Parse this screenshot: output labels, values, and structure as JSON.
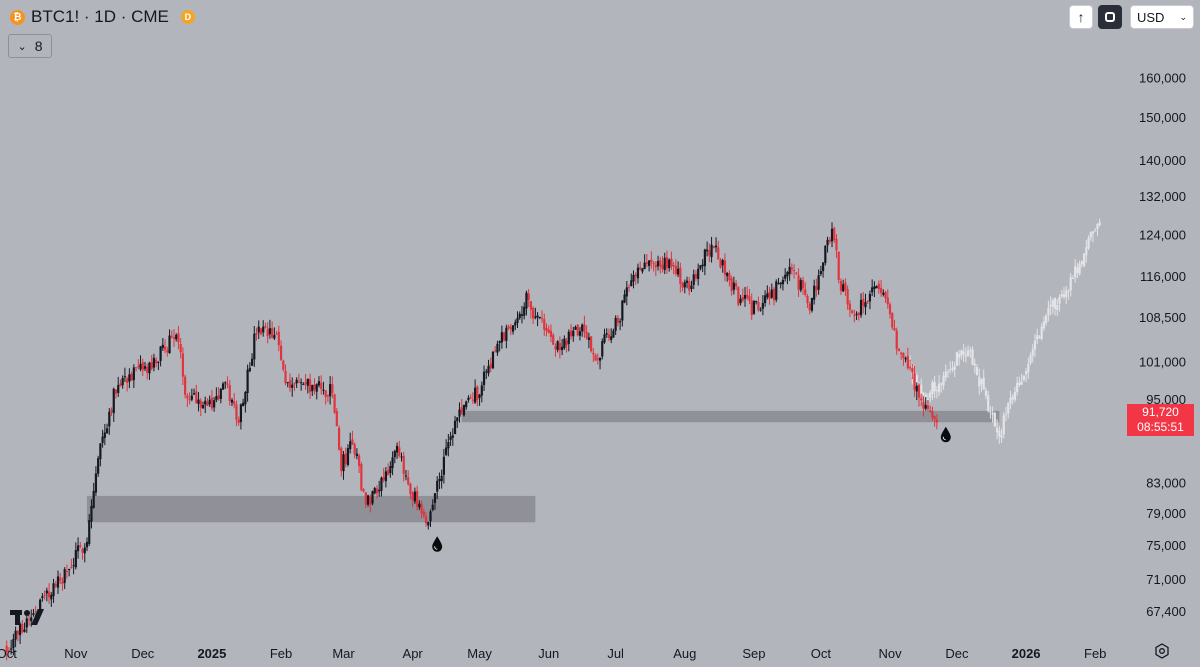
{
  "header": {
    "symbol": "BTC1! · 1D · CME",
    "symbol_icon": "bitcoin-icon",
    "delayed_badge": "D",
    "indicators_count": "8",
    "currency": "USD"
  },
  "price_tag": {
    "price": "91,720",
    "countdown": "08:55:51",
    "color": "#f23645"
  },
  "colors": {
    "background": "#b3b5bd",
    "up": "#141821",
    "down": "#e0353d",
    "projection": "#e3e4e8",
    "zone": "#8f9098"
  },
  "chart_data": {
    "type": "candlestick",
    "y_axis": {
      "scale": "log",
      "range": [
        64500,
        170000
      ],
      "ticks": [
        160000,
        150000,
        140000,
        132000,
        124000,
        116000,
        108500,
        101000,
        95000,
        83000,
        79000,
        75000,
        71000,
        67400
      ],
      "tick_labels": [
        "160,000",
        "150,000",
        "140,000",
        "132,000",
        "124,000",
        "116,000",
        "108,500",
        "101,000",
        "95,000",
        "83,000",
        "79,000",
        "75,000",
        "71,000",
        "67,400"
      ]
    },
    "x_axis": {
      "range": [
        "2024-09-28",
        "2026-02-13"
      ],
      "ticks": [
        {
          "label": "Oct",
          "date": "2024-10-01",
          "bold": false
        },
        {
          "label": "Nov",
          "date": "2024-11-01",
          "bold": false
        },
        {
          "label": "Dec",
          "date": "2024-12-01",
          "bold": false
        },
        {
          "label": "2025",
          "date": "2025-01-01",
          "bold": true
        },
        {
          "label": "Feb",
          "date": "2025-02-01",
          "bold": false
        },
        {
          "label": "Mar",
          "date": "2025-03-01",
          "bold": false
        },
        {
          "label": "Apr",
          "date": "2025-04-01",
          "bold": false
        },
        {
          "label": "May",
          "date": "2025-05-01",
          "bold": false
        },
        {
          "label": "Jun",
          "date": "2025-06-01",
          "bold": false
        },
        {
          "label": "Jul",
          "date": "2025-07-01",
          "bold": false
        },
        {
          "label": "Aug",
          "date": "2025-08-01",
          "bold": false
        },
        {
          "label": "Sep",
          "date": "2025-09-01",
          "bold": false
        },
        {
          "label": "Oct",
          "date": "2025-10-01",
          "bold": false
        },
        {
          "label": "Nov",
          "date": "2025-11-01",
          "bold": false
        },
        {
          "label": "Dec",
          "date": "2025-12-01",
          "bold": false
        },
        {
          "label": "2026",
          "date": "2026-01-01",
          "bold": true
        },
        {
          "label": "Feb",
          "date": "2026-02-01",
          "bold": false
        }
      ]
    },
    "series": [
      {
        "kind": "ohlc",
        "anchors": [
          [
            "2024-10-01",
            63500
          ],
          [
            "2024-10-15",
            68000
          ],
          [
            "2024-10-29",
            72000
          ],
          [
            "2024-11-06",
            76000
          ],
          [
            "2024-11-12",
            88000
          ],
          [
            "2024-11-20",
            98000
          ],
          [
            "2024-12-05",
            100000
          ],
          [
            "2024-12-16",
            106000
          ],
          [
            "2024-12-20",
            96500
          ],
          [
            "2024-12-31",
            94000
          ],
          [
            "2025-01-07",
            97000
          ],
          [
            "2025-01-13",
            92000
          ],
          [
            "2025-01-21",
            106000
          ],
          [
            "2025-01-30",
            105000
          ],
          [
            "2025-02-03",
            98000
          ],
          [
            "2025-02-24",
            96000
          ],
          [
            "2025-02-28",
            85000
          ],
          [
            "2025-03-05",
            89000
          ],
          [
            "2025-03-11",
            80000
          ],
          [
            "2025-03-25",
            87000
          ],
          [
            "2025-04-07",
            77000
          ],
          [
            "2025-04-14",
            85000
          ],
          [
            "2025-04-22",
            93000
          ],
          [
            "2025-05-01",
            96500
          ],
          [
            "2025-05-08",
            103000
          ],
          [
            "2025-05-22",
            111500
          ],
          [
            "2025-06-05",
            103000
          ],
          [
            "2025-06-16",
            107000
          ],
          [
            "2025-06-22",
            101500
          ],
          [
            "2025-07-03",
            109000
          ],
          [
            "2025-07-11",
            118500
          ],
          [
            "2025-07-25",
            118000
          ],
          [
            "2025-08-02",
            114000
          ],
          [
            "2025-08-13",
            122000
          ],
          [
            "2025-08-25",
            112000
          ],
          [
            "2025-09-01",
            110000
          ],
          [
            "2025-09-10",
            113000
          ],
          [
            "2025-09-18",
            117500
          ],
          [
            "2025-09-26",
            110000
          ],
          [
            "2025-10-06",
            125000
          ],
          [
            "2025-10-10",
            114000
          ],
          [
            "2025-10-16",
            109000
          ],
          [
            "2025-10-27",
            115000
          ],
          [
            "2025-11-04",
            104000
          ],
          [
            "2025-11-14",
            96000
          ],
          [
            "2025-11-20",
            91500
          ],
          [
            "2025-11-22",
            91720
          ]
        ],
        "noise_seed": 7
      },
      {
        "kind": "projection",
        "anchors": [
          [
            "2025-11-09",
            101500
          ],
          [
            "2025-11-16",
            95000
          ],
          [
            "2025-11-21",
            97000
          ],
          [
            "2025-11-30",
            101000
          ],
          [
            "2025-12-07",
            102500
          ],
          [
            "2025-12-13",
            96000
          ],
          [
            "2025-12-20",
            89500
          ],
          [
            "2025-12-27",
            96000
          ],
          [
            "2026-01-02",
            100500
          ],
          [
            "2026-01-10",
            109000
          ],
          [
            "2026-01-20",
            114000
          ],
          [
            "2026-01-28",
            121000
          ],
          [
            "2026-02-03",
            127000
          ]
        ],
        "noise_seed": 3
      }
    ],
    "zones": [
      {
        "from": "2024-11-06",
        "to": "2025-05-26",
        "low": 77800,
        "high": 81200
      },
      {
        "from": "2025-04-23",
        "to": "2025-12-20",
        "low": 91500,
        "high": 93200
      }
    ],
    "markers": [
      {
        "date": "2025-04-12",
        "price": 75200,
        "icon": "liquidity-drop-icon"
      },
      {
        "date": "2025-11-26",
        "price": 89800,
        "icon": "liquidity-drop-icon"
      }
    ],
    "last_price": 91720
  }
}
